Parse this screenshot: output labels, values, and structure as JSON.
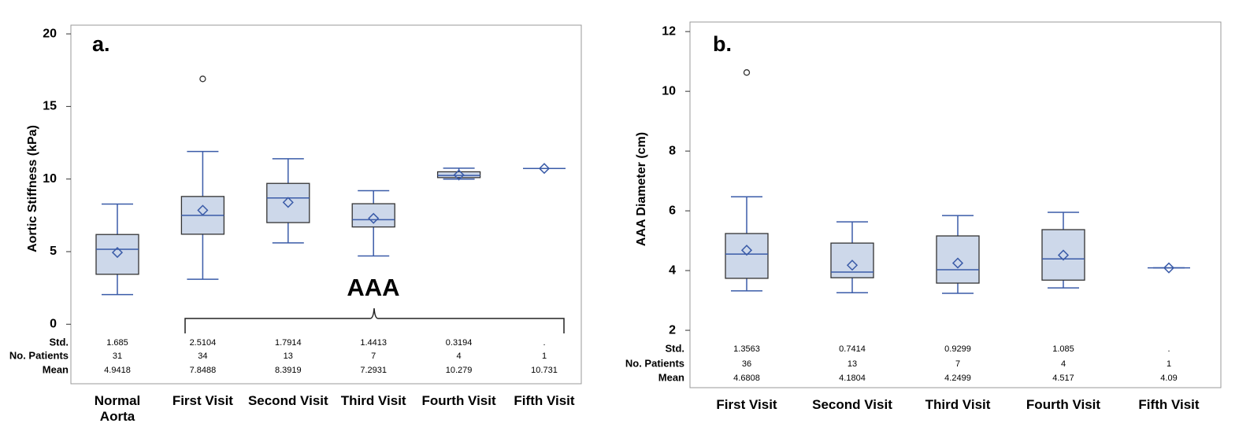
{
  "chart_data": [
    {
      "type": "box",
      "panel_label": "a.",
      "ylabel": "Aortic Stiffness (kPa)",
      "categories": [
        "Normal\nAorta",
        "First Visit",
        "Second Visit",
        "Third Visit",
        "Fourth Visit",
        "Fifth Visit"
      ],
      "boxes": [
        {
          "whislo": 2.04,
          "q1": 3.44,
          "med": 5.16,
          "q3": 6.18,
          "whishi": 8.28,
          "fliers": []
        },
        {
          "whislo": 3.1,
          "q1": 6.2,
          "med": 7.5,
          "q3": 8.8,
          "whishi": 11.9,
          "fliers": [
            16.9
          ]
        },
        {
          "whislo": 5.6,
          "q1": 7.0,
          "med": 8.7,
          "q3": 9.7,
          "whishi": 11.4,
          "fliers": []
        },
        {
          "whislo": 4.7,
          "q1": 6.7,
          "med": 7.2,
          "q3": 8.3,
          "whishi": 9.2,
          "fliers": []
        },
        {
          "whislo": 10.0,
          "q1": 10.1,
          "med": 10.25,
          "q3": 10.5,
          "whishi": 10.75,
          "fliers": []
        },
        {
          "whislo": 10.731,
          "q1": 10.731,
          "med": 10.731,
          "q3": 10.731,
          "whishi": 10.731,
          "fliers": []
        }
      ],
      "stats": [
        {
          "label": "Std.",
          "values": [
            1.685,
            2.5104,
            1.7914,
            1.4413,
            0.3194,
            "."
          ]
        },
        {
          "label": "No. Patients",
          "values": [
            31,
            34,
            13,
            7,
            4,
            1
          ]
        },
        {
          "label": "Mean",
          "values": [
            4.9418,
            7.8488,
            8.3919,
            7.2931,
            10.279,
            10.731
          ]
        }
      ],
      "annotation": "AAA",
      "ylim": [
        -4.1,
        20.6
      ],
      "yticks": [
        0,
        5,
        10,
        15,
        20
      ]
    },
    {
      "type": "box",
      "panel_label": "b.",
      "ylabel": "AAA Diameter (cm)",
      "categories": [
        "First Visit",
        "Second Visit",
        "Third Visit",
        "Fourth Visit",
        "Fifth Visit"
      ],
      "boxes": [
        {
          "whislo": 3.32,
          "q1": 3.74,
          "med": 4.55,
          "q3": 5.24,
          "whishi": 6.47,
          "fliers": [
            10.63
          ]
        },
        {
          "whislo": 3.26,
          "q1": 3.76,
          "med": 3.95,
          "q3": 4.92,
          "whishi": 5.63,
          "fliers": []
        },
        {
          "whislo": 3.24,
          "q1": 3.58,
          "med": 4.03,
          "q3": 5.16,
          "whishi": 5.84,
          "fliers": []
        },
        {
          "whislo": 3.42,
          "q1": 3.68,
          "med": 4.39,
          "q3": 5.37,
          "whishi": 5.95,
          "fliers": []
        },
        {
          "whislo": 4.09,
          "q1": 4.09,
          "med": 4.09,
          "q3": 4.09,
          "whishi": 4.09,
          "fliers": []
        }
      ],
      "stats": [
        {
          "label": "Std.",
          "values": [
            1.3563,
            0.7414,
            0.9299,
            1.085,
            "."
          ]
        },
        {
          "label": "No. Patients",
          "values": [
            36,
            13,
            7,
            4,
            1
          ]
        },
        {
          "label": "Mean",
          "values": [
            4.6808,
            4.1804,
            4.2499,
            4.517,
            4.09
          ]
        }
      ],
      "ylim": [
        0.08,
        12.32
      ],
      "yticks": [
        2,
        4,
        6,
        8,
        10,
        12
      ]
    }
  ]
}
